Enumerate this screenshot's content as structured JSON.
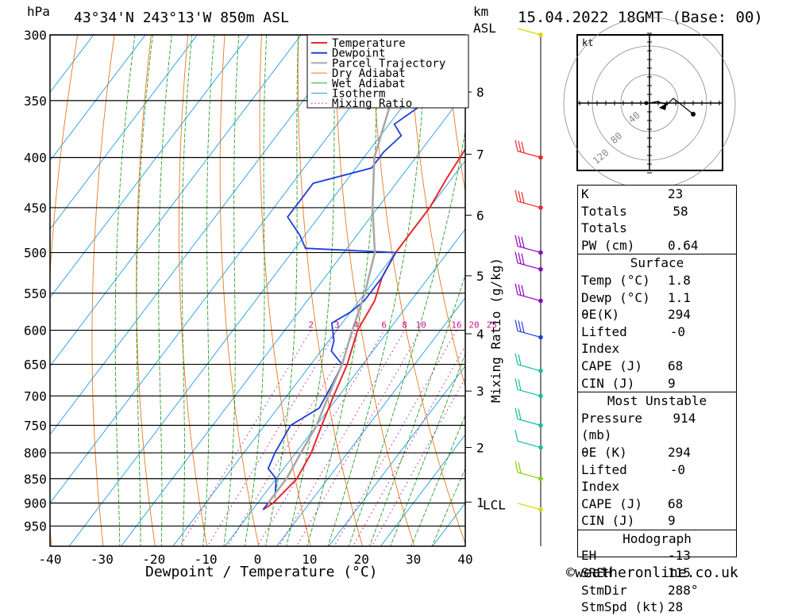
{
  "header": {
    "pressure_unit": "hPa",
    "location": "43°34'N  243°13'W  850m  ASL",
    "height_unit": "km",
    "height_ref": "ASL",
    "datetime": "15.04.2022  18GMT  (Base: 00)"
  },
  "footer": {
    "credit": "©weatheronline.co.uk"
  },
  "chart_data": {
    "type": "line",
    "title": "43°34'N  243°13'W  850m  ASL",
    "xlabel": "Dewpoint / Temperature (°C)",
    "ylabel": "hPa",
    "xlim": [
      -40,
      40
    ],
    "ylim": [
      300,
      1000
    ],
    "x_ticks": [
      -40,
      -30,
      -20,
      -10,
      0,
      10,
      20,
      30,
      40
    ],
    "pressure_levels": [
      300,
      350,
      400,
      450,
      500,
      550,
      600,
      650,
      700,
      750,
      800,
      850,
      900,
      950
    ],
    "height_ticks": [
      {
        "km": "8",
        "p": 343
      },
      {
        "km": "7",
        "p": 397
      },
      {
        "km": "6",
        "p": 458
      },
      {
        "km": "5",
        "p": 528
      },
      {
        "km": "4",
        "p": 605
      },
      {
        "km": "3",
        "p": 692
      },
      {
        "km": "2",
        "p": 790
      },
      {
        "km": "1",
        "p": 898
      }
    ],
    "lcl_label": "LCL",
    "lcl_pressure": 900,
    "mixing_ratio_label": "Mixing Ratio (g/kg)",
    "mixing_ratio_values": [
      "2",
      "3",
      "4",
      "6",
      "8",
      "10",
      "16",
      "20",
      "25"
    ],
    "legend": [
      "Temperature",
      "Dewpoint",
      "Parcel Trajectory",
      "Dry Adiabat",
      "Wet Adiabat",
      "Isotherm",
      "Mixing Ratio"
    ],
    "legend_position": "top-right",
    "colors": {
      "temperature": "#e8282d",
      "dewpoint": "#1f3fd8",
      "parcel": "#a8a8a8",
      "dry_adiabat": "#e87820",
      "wet_adiabat": "#2aa02a",
      "isotherm": "#1e9fe6",
      "mixing_ratio": "#c8148c"
    },
    "series": [
      {
        "name": "Temperature",
        "points": [
          [
            300,
            -13
          ],
          [
            320,
            -12
          ],
          [
            350,
            -12
          ],
          [
            380,
            -12
          ],
          [
            420,
            -11
          ],
          [
            450,
            -10
          ],
          [
            480,
            -10
          ],
          [
            500,
            -10
          ],
          [
            530,
            -9
          ],
          [
            560,
            -7
          ],
          [
            600,
            -6
          ],
          [
            650,
            -3
          ],
          [
            700,
            -1
          ],
          [
            750,
            1
          ],
          [
            800,
            3
          ],
          [
            850,
            4
          ],
          [
            900,
            3
          ],
          [
            914,
            2
          ]
        ]
      },
      {
        "name": "Dewpoint",
        "points": [
          [
            300,
            -17
          ],
          [
            305,
            -19
          ],
          [
            315,
            -27
          ],
          [
            330,
            -26
          ],
          [
            350,
            -26
          ],
          [
            370,
            -29
          ],
          [
            380,
            -26
          ],
          [
            395,
            -27
          ],
          [
            410,
            -27
          ],
          [
            425,
            -36
          ],
          [
            440,
            -36
          ],
          [
            460,
            -36
          ],
          [
            480,
            -31
          ],
          [
            495,
            -28
          ],
          [
            500,
            -10
          ],
          [
            530,
            -9
          ],
          [
            560,
            -9
          ],
          [
            575,
            -10
          ],
          [
            590,
            -12
          ],
          [
            615,
            -9
          ],
          [
            630,
            -8
          ],
          [
            650,
            -4
          ],
          [
            680,
            -3
          ],
          [
            720,
            -2
          ],
          [
            750,
            -5
          ],
          [
            800,
            -4
          ],
          [
            830,
            -3
          ],
          [
            850,
            0
          ],
          [
            880,
            2
          ],
          [
            900,
            2
          ],
          [
            914,
            2
          ]
        ]
      },
      {
        "name": "Parcel Trajectory",
        "points": [
          [
            300,
            -38
          ],
          [
            350,
            -33
          ],
          [
            400,
            -28
          ],
          [
            450,
            -21
          ],
          [
            500,
            -14
          ],
          [
            550,
            -10
          ],
          [
            600,
            -7
          ],
          [
            650,
            -4
          ],
          [
            700,
            -2
          ],
          [
            750,
            0
          ],
          [
            800,
            1
          ],
          [
            850,
            2
          ],
          [
            900,
            2
          ]
        ]
      }
    ]
  },
  "hodograph": {
    "unit": "kt",
    "ring_labels": [
      "40",
      "80",
      "120"
    ]
  },
  "indices": {
    "rows": [
      {
        "label": "K",
        "value": "23"
      },
      {
        "label": "Totals Totals",
        "value": "58"
      },
      {
        "label": "PW (cm)",
        "value": "0.64"
      }
    ],
    "surface": {
      "title": "Surface",
      "rows": [
        {
          "label": "Temp (°C)",
          "value": "1.8"
        },
        {
          "label": "Dewp (°C)",
          "value": "1.1"
        },
        {
          "label": "θE(K)",
          "value": "294"
        },
        {
          "label": "Lifted Index",
          "value": "-0"
        },
        {
          "label": "CAPE (J)",
          "value": "68"
        },
        {
          "label": "CIN (J)",
          "value": "9"
        }
      ]
    },
    "most_unstable": {
      "title": "Most Unstable",
      "rows": [
        {
          "label": "Pressure (mb)",
          "value": "914"
        },
        {
          "label": "θE (K)",
          "value": "294"
        },
        {
          "label": "Lifted Index",
          "value": "-0"
        },
        {
          "label": "CAPE (J)",
          "value": "68"
        },
        {
          "label": "CIN (J)",
          "value": "9"
        }
      ]
    },
    "hodograph_table": {
      "title": "Hodograph",
      "rows": [
        {
          "label": "EH",
          "value": "-13"
        },
        {
          "label": "SREH",
          "value": "115"
        },
        {
          "label": "StmDir",
          "value": "288°"
        },
        {
          "label": "StmSpd (kt)",
          "value": "28"
        }
      ]
    }
  }
}
